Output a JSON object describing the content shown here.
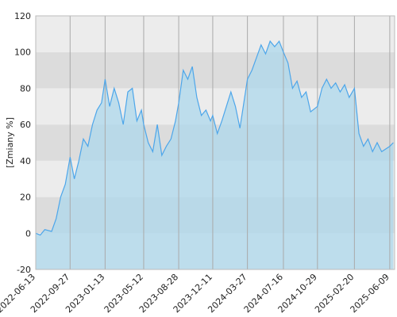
{
  "chart_data": {
    "type": "line",
    "y_label": "[Zmiany %]",
    "x": [
      "2022-06-13",
      "2022-06-27",
      "2022-07-11",
      "2022-08-01",
      "2022-08-15",
      "2022-08-29",
      "2022-09-12",
      "2022-09-27",
      "2022-10-10",
      "2022-10-24",
      "2022-11-07",
      "2022-11-21",
      "2022-12-05",
      "2022-12-19",
      "2023-01-02",
      "2023-01-13",
      "2023-01-27",
      "2023-02-10",
      "2023-02-24",
      "2023-03-10",
      "2023-03-24",
      "2023-04-07",
      "2023-04-21",
      "2023-05-05",
      "2023-05-12",
      "2023-05-26",
      "2023-06-09",
      "2023-06-23",
      "2023-07-07",
      "2023-07-21",
      "2023-08-04",
      "2023-08-18",
      "2023-08-28",
      "2023-09-11",
      "2023-09-25",
      "2023-10-09",
      "2023-10-23",
      "2023-11-06",
      "2023-11-20",
      "2023-12-04",
      "2023-12-11",
      "2023-12-25",
      "2024-01-08",
      "2024-01-22",
      "2024-02-05",
      "2024-02-19",
      "2024-03-04",
      "2024-03-27",
      "2024-04-10",
      "2024-04-24",
      "2024-05-08",
      "2024-05-22",
      "2024-06-05",
      "2024-06-19",
      "2024-07-03",
      "2024-07-16",
      "2024-07-30",
      "2024-08-13",
      "2024-08-27",
      "2024-09-10",
      "2024-09-24",
      "2024-10-08",
      "2024-10-29",
      "2024-11-12",
      "2024-11-26",
      "2024-12-10",
      "2024-12-24",
      "2025-01-07",
      "2025-01-21",
      "2025-02-04",
      "2025-02-20",
      "2025-03-06",
      "2025-03-20",
      "2025-04-03",
      "2025-04-17",
      "2025-05-01",
      "2025-05-15",
      "2025-06-09",
      "2025-06-20"
    ],
    "values": [
      0,
      -1,
      2,
      1,
      8,
      20,
      27,
      42,
      30,
      40,
      52,
      48,
      60,
      68,
      72,
      85,
      70,
      80,
      72,
      60,
      78,
      80,
      62,
      68,
      60,
      50,
      45,
      60,
      43,
      48,
      52,
      62,
      72,
      90,
      85,
      92,
      75,
      65,
      68,
      62,
      65,
      55,
      62,
      70,
      78,
      70,
      58,
      85,
      90,
      97,
      104,
      99,
      106,
      103,
      106,
      100,
      94,
      80,
      84,
      75,
      78,
      67,
      70,
      80,
      85,
      80,
      83,
      78,
      82,
      75,
      80,
      55,
      48,
      52,
      45,
      50,
      45,
      48,
      50
    ],
    "color": "#4da6ea",
    "fill": "#add8ec",
    "xlim": [
      "2022-06-13",
      "2025-06-24"
    ],
    "xticks": [
      "2022-06-13",
      "2022-09-27",
      "2023-01-13",
      "2023-05-12",
      "2023-08-28",
      "2023-12-11",
      "2024-03-27",
      "2024-07-16",
      "2024-10-29",
      "2025-02-20",
      "2025-06-09"
    ],
    "ylim": [
      -20,
      120
    ],
    "yticks": [
      -20,
      0,
      20,
      40,
      60,
      80,
      100,
      120
    ],
    "grid": true
  }
}
